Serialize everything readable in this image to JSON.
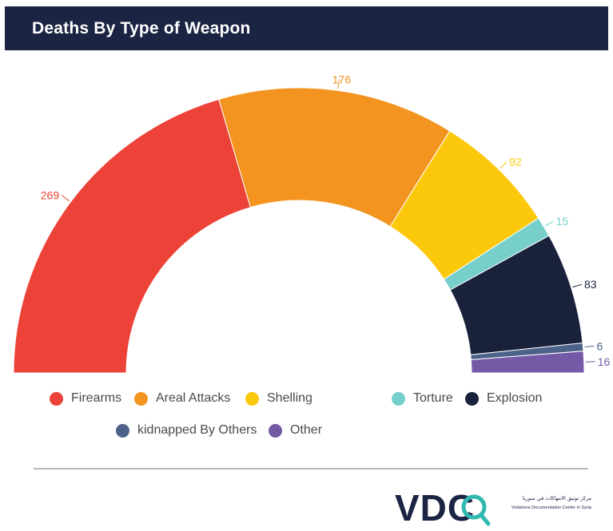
{
  "header": {
    "title": "Deaths By Type of Weapon"
  },
  "colors": {
    "header_bg": "#1b2442",
    "Firearms": "#ec4237",
    "Areal Attacks": "#f39420",
    "Shelling": "#fcc80c",
    "Torture": "#76cfca",
    "Explosion": "#1a213b",
    "kidnapped By Others": "#4d6289",
    "Other": "#7459a6"
  },
  "chart_data": {
    "type": "pie",
    "variant": "semicircle-donut",
    "title": "Deaths By Type of Weapon",
    "categories": [
      "Firearms",
      "Areal Attacks",
      "Shelling",
      "Torture",
      "Explosion",
      "kidnapped By Others",
      "Other"
    ],
    "values": [
      269,
      176,
      92,
      15,
      83,
      6,
      16
    ],
    "legend_position": "bottom"
  },
  "legend": {
    "items": [
      {
        "label": "Firearms",
        "icon": "circle-marker-icon"
      },
      {
        "label": "Areal Attacks",
        "icon": "circle-marker-icon"
      },
      {
        "label": "Shelling",
        "icon": "circle-marker-icon"
      },
      {
        "label": "Torture",
        "icon": "circle-marker-icon"
      },
      {
        "label": "Explosion",
        "icon": "circle-marker-icon"
      },
      {
        "label": "kidnapped By Others",
        "icon": "circle-marker-icon"
      },
      {
        "label": "Other",
        "icon": "circle-marker-icon"
      }
    ]
  },
  "footer": {
    "logo_text": "VDC",
    "logo_arabic": "مركز توثيق الانتهاكات في سوريا",
    "logo_english": "Violations Documentation Center in Syria"
  }
}
